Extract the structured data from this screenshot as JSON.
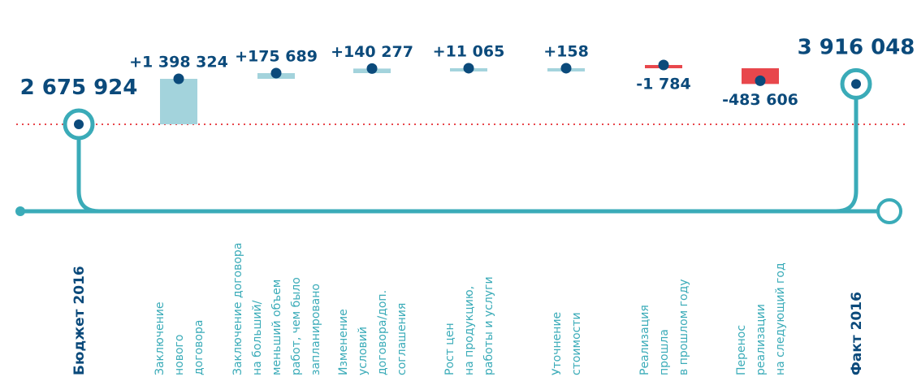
{
  "chart_data": {
    "type": "waterfall",
    "categories": [
      [
        "Бюджет 2016"
      ],
      [
        "Заключение",
        "нового",
        "договора"
      ],
      [
        "Заключение договора",
        "на больший/",
        "меньший объем",
        "работ, чем было",
        "запланировано"
      ],
      [
        "Изменение",
        "условий",
        "договора/доп.",
        "соглашения"
      ],
      [
        "Рост цен",
        "на продукцию,",
        "работы и услуги"
      ],
      [
        "Уточнение",
        "стоимости"
      ],
      [
        "Реализация",
        "прошла",
        "в прошлом году"
      ],
      [
        "Перенос",
        "реализации",
        "на следующий год"
      ],
      [
        "Факт 2016"
      ]
    ],
    "values": [
      2675924,
      1398324,
      175689,
      140277,
      11065,
      158,
      -1784,
      -483606,
      3916048
    ],
    "value_labels": [
      "2 675 924",
      "+1 398 324",
      "+175 689",
      "+140 277",
      "+11 065",
      "+158",
      "-1 784",
      "-483 606",
      "3 916 048"
    ],
    "ylim": [
      0,
      6000000
    ],
    "colors": {
      "increase": "#a3d3dc",
      "decrease": "#e8474c",
      "total": "#3aabb8",
      "dot": "#0b4a7b"
    }
  }
}
